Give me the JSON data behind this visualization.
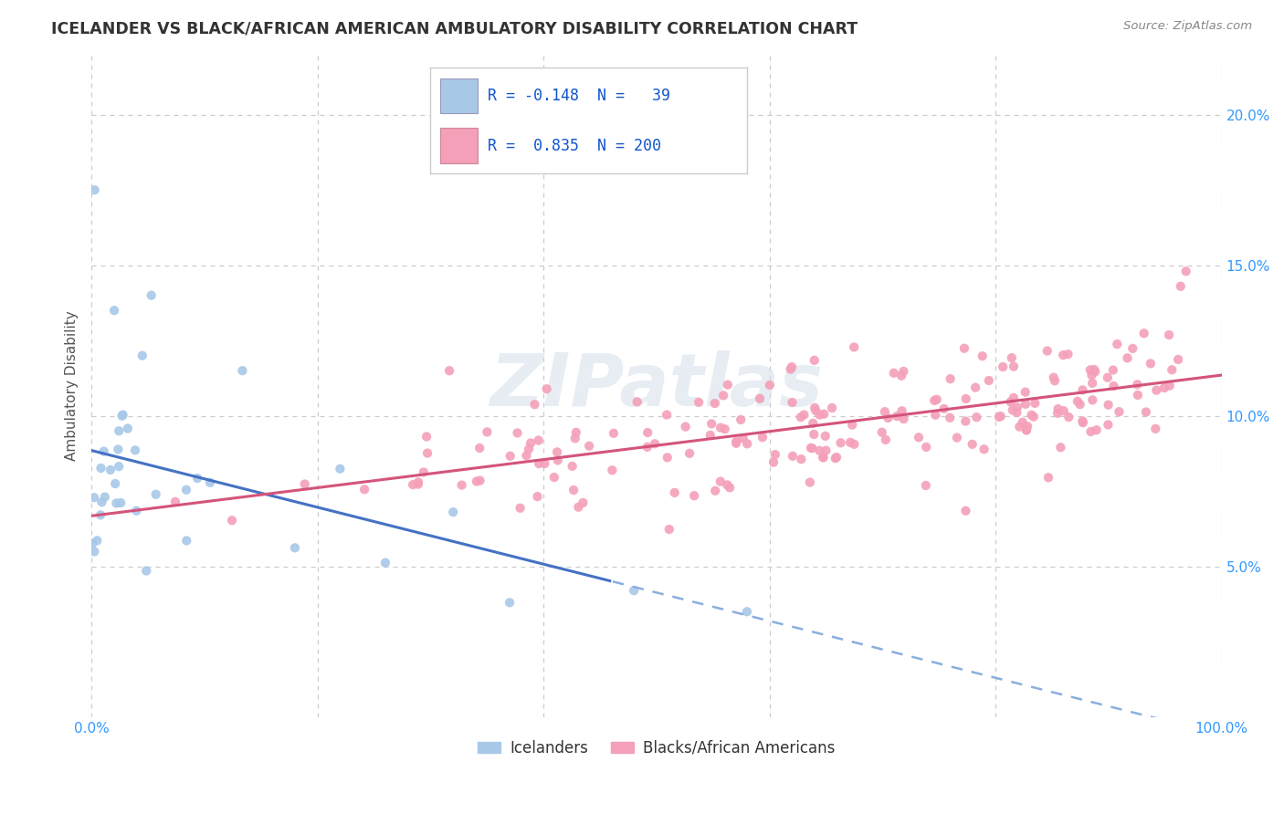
{
  "title": "ICELANDER VS BLACK/AFRICAN AMERICAN AMBULATORY DISABILITY CORRELATION CHART",
  "source": "Source: ZipAtlas.com",
  "ylabel": "Ambulatory Disability",
  "xlim": [
    0.0,
    1.0
  ],
  "ylim": [
    0.0,
    0.22
  ],
  "x_tick_positions": [
    0.0,
    0.2,
    0.4,
    0.6,
    0.8,
    1.0
  ],
  "x_tick_labels": [
    "0.0%",
    "",
    "",
    "",
    "",
    "100.0%"
  ],
  "y_tick_positions": [
    0.05,
    0.1,
    0.15,
    0.2
  ],
  "y_tick_labels": [
    "5.0%",
    "10.0%",
    "15.0%",
    "20.0%"
  ],
  "r_icelander": -0.148,
  "n_icelander": 39,
  "r_black": 0.835,
  "n_black": 200,
  "blue_scatter_color": "#a8c8e8",
  "pink_scatter_color": "#f4a0b8",
  "line_blue_solid": "#4472c4",
  "line_blue_dashed": "#8aaedd",
  "line_pink": "#d4547a",
  "legend_blue_fill": "#a8c8e8",
  "legend_pink_fill": "#f4a0b8",
  "background_color": "#ffffff",
  "grid_color": "#cccccc",
  "title_color": "#333333",
  "ylabel_color": "#555555",
  "tick_color": "#3399ff",
  "source_color": "#888888",
  "watermark_color": "#d0dde8",
  "watermark_alpha": 0.5,
  "legend_label_color": "#1155cc"
}
